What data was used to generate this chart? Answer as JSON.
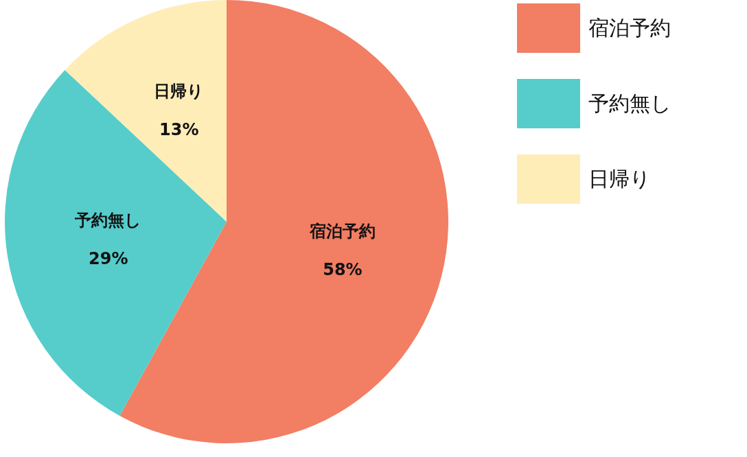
{
  "chart_data": {
    "type": "pie",
    "categories": [
      "宿泊予約",
      "予約無し",
      "日帰り"
    ],
    "values": [
      58,
      29,
      13
    ],
    "colors": [
      "#f27e63",
      "#56cdcb",
      "#ffedb8"
    ],
    "value_labels": [
      "58%",
      "29%",
      "13%"
    ],
    "legend": "top right"
  }
}
